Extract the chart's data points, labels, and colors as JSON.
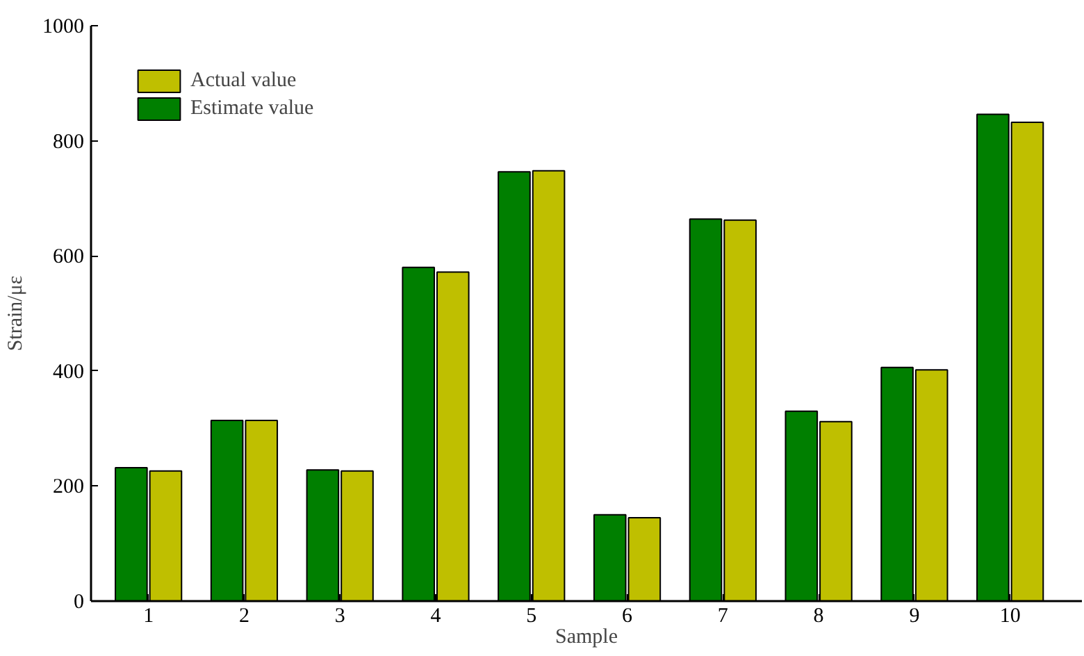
{
  "chart_data": {
    "type": "bar",
    "xlabel": "Sample",
    "ylabel": "Strain/με",
    "categories": [
      "1",
      "2",
      "3",
      "4",
      "5",
      "6",
      "7",
      "8",
      "9",
      "10"
    ],
    "series": [
      {
        "name": "Estimate value",
        "color": "#007f00",
        "values": [
          232,
          314,
          228,
          580,
          746,
          150,
          664,
          330,
          406,
          846
        ]
      },
      {
        "name": "Actual value",
        "color": "#bfbf00",
        "values": [
          226,
          314,
          226,
          572,
          748,
          145,
          662,
          312,
          402,
          832
        ]
      }
    ],
    "ylim": [
      0,
      1000
    ],
    "yticks": [
      0,
      200,
      400,
      600,
      800,
      1000
    ],
    "grid": false,
    "legend": "top left"
  }
}
